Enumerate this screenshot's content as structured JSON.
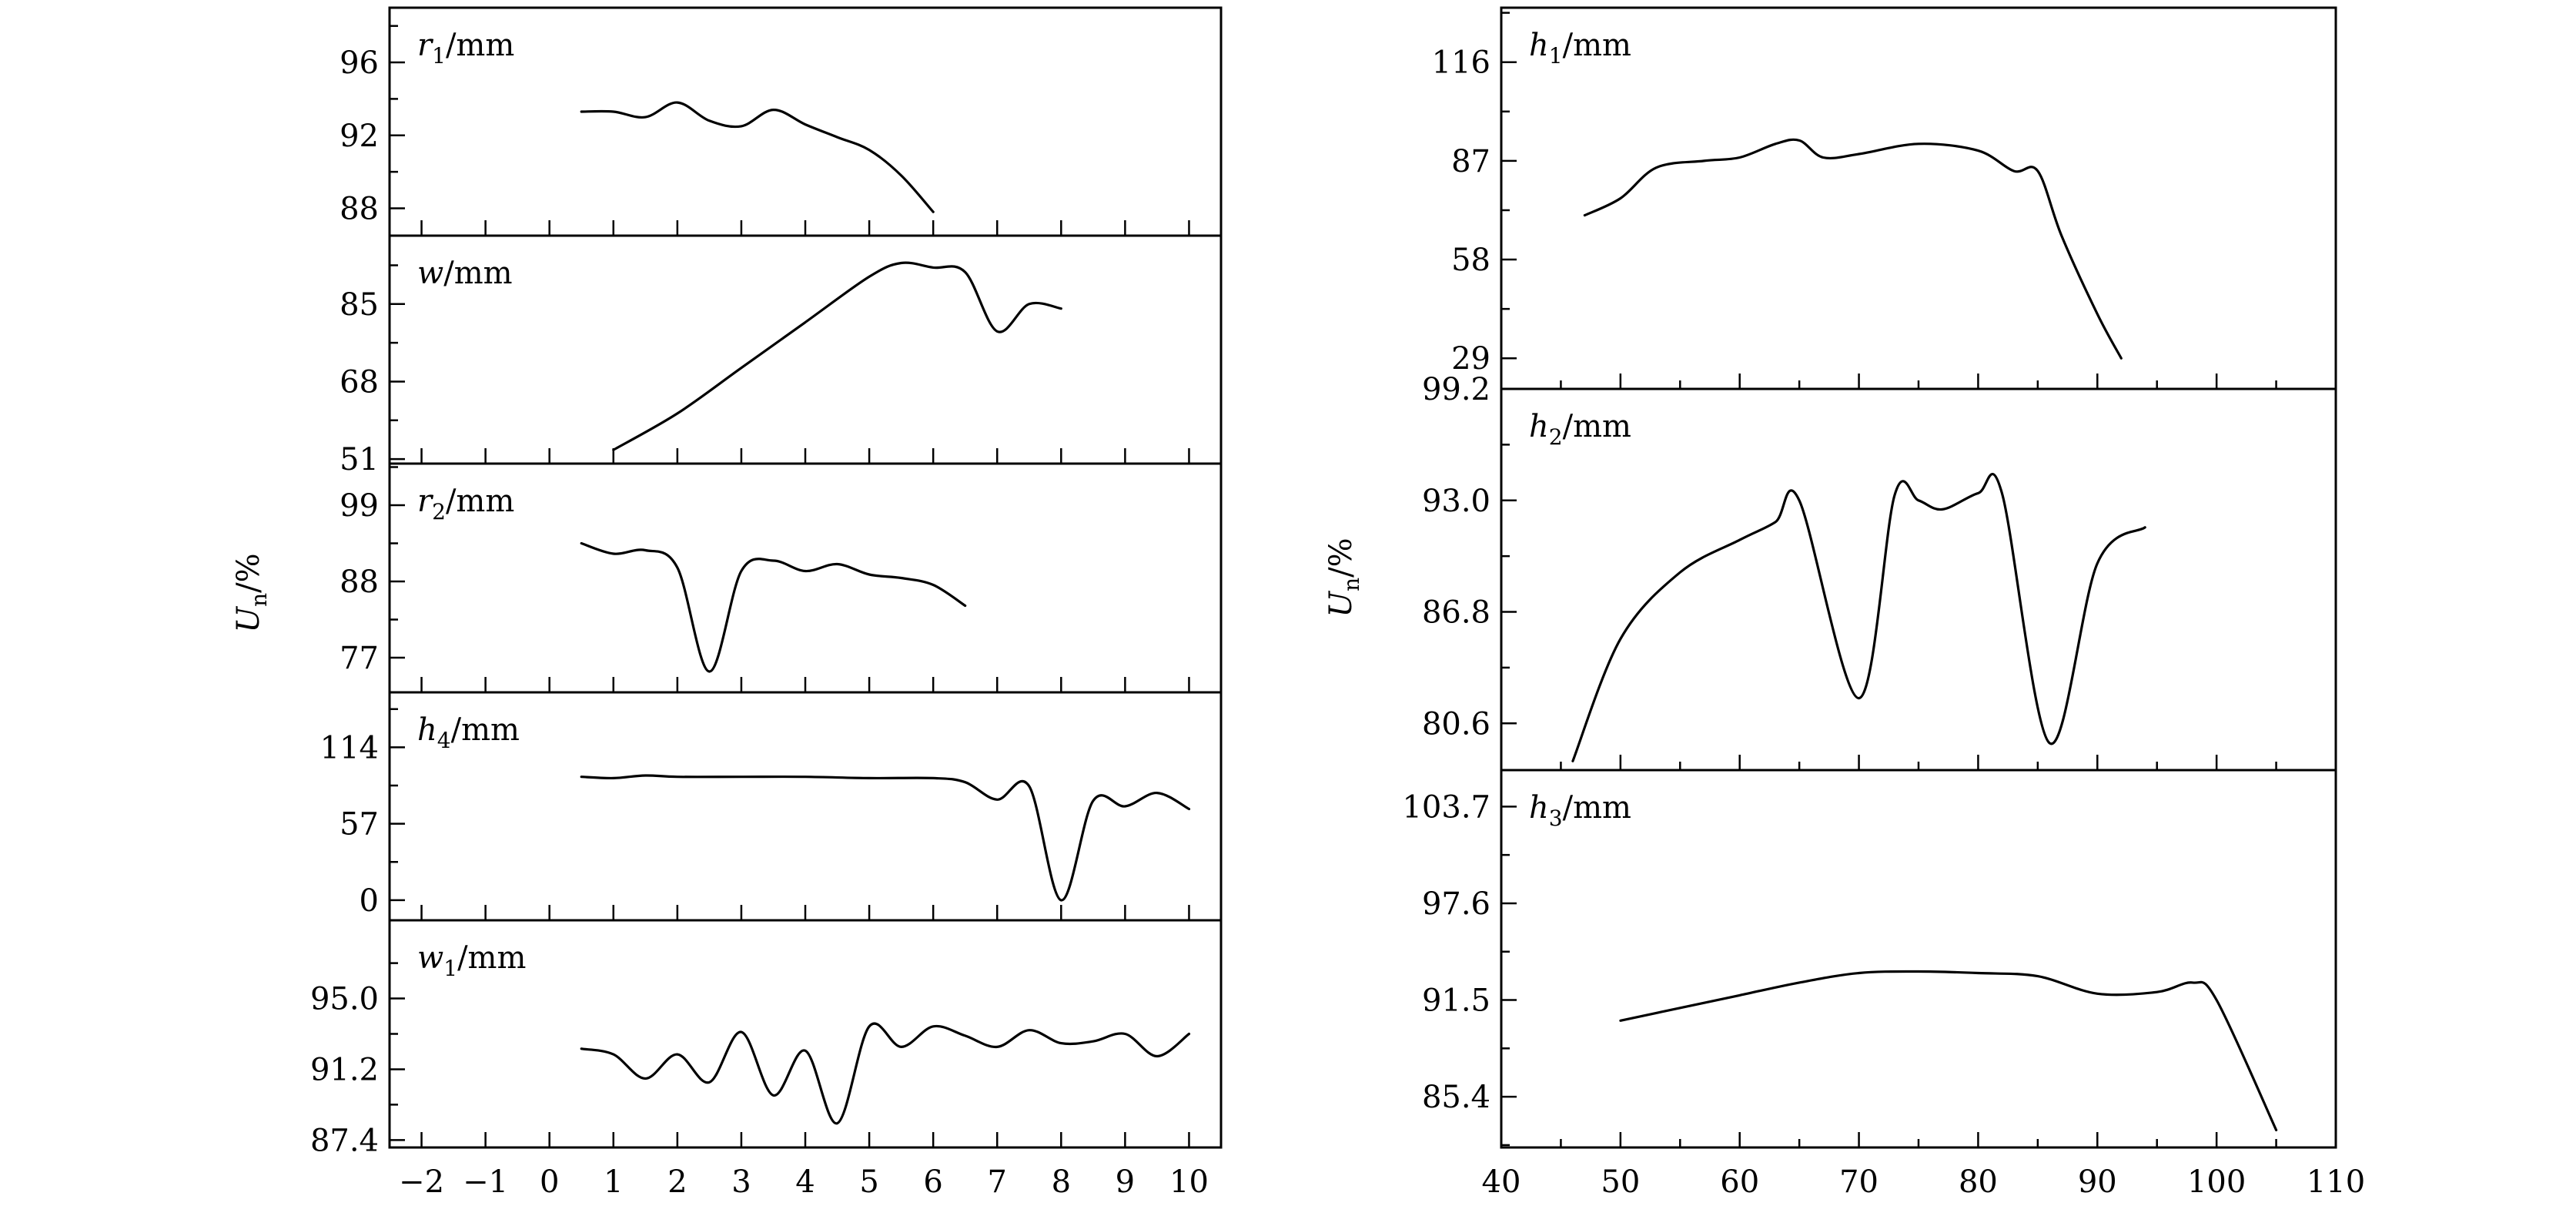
{
  "chart_data": {
    "type": "line",
    "y_axis_label": {
      "symbol": "U",
      "subscript": "n",
      "unit": "/%"
    },
    "left_column": {
      "x_ticks": [
        "−2",
        "−1",
        "0",
        "1",
        "2",
        "3",
        "4",
        "5",
        "6",
        "7",
        "8",
        "9",
        "10"
      ],
      "xlim": [
        -2.5,
        10.5
      ],
      "panels": [
        {
          "label": {
            "symbol": "r",
            "subscript": "1",
            "unit": "/mm"
          },
          "ylim": [
            86.5,
            99
          ],
          "yticks": [
            88,
            92,
            96
          ],
          "ytick_labels": [
            "88",
            "92",
            "96"
          ],
          "x": [
            0.5,
            1,
            1.5,
            2,
            2.5,
            3,
            3.5,
            4,
            4.5,
            5,
            5.5,
            6
          ],
          "y": [
            93.3,
            93.3,
            93.0,
            93.8,
            92.8,
            92.5,
            93.4,
            92.6,
            91.9,
            91.2,
            89.8,
            87.8
          ]
        },
        {
          "label": {
            "symbol": "w",
            "subscript": "",
            "unit": "/mm"
          },
          "ylim": [
            50,
            100
          ],
          "yticks": [
            51,
            68,
            85
          ],
          "ytick_labels": [
            "51",
            "68",
            "85"
          ],
          "x": [
            1,
            2,
            3,
            4,
            5,
            5.5,
            6,
            6.5,
            7,
            7.5,
            8
          ],
          "y": [
            53,
            61,
            71,
            81,
            91,
            94,
            93,
            92,
            79,
            85,
            84
          ]
        },
        {
          "label": {
            "symbol": "r",
            "subscript": "2",
            "unit": "/mm"
          },
          "ylim": [
            72,
            105
          ],
          "yticks": [
            77,
            88,
            99
          ],
          "ytick_labels": [
            "77",
            "88",
            "99"
          ],
          "x": [
            0.5,
            1,
            1.5,
            2,
            2.5,
            3,
            3.5,
            4,
            4.5,
            5,
            5.5,
            6,
            6.5
          ],
          "y": [
            93.5,
            92.0,
            92.5,
            90.0,
            75.0,
            89.5,
            91.0,
            89.5,
            90.5,
            89.0,
            88.5,
            87.5,
            84.5
          ]
        },
        {
          "label": {
            "symbol": "h",
            "subscript": "4",
            "unit": "/mm"
          },
          "ylim": [
            -15,
            155
          ],
          "yticks": [
            0,
            57,
            114
          ],
          "ytick_labels": [
            "0",
            "57",
            "114"
          ],
          "x": [
            0.5,
            1,
            1.5,
            2,
            3,
            4,
            5,
            6,
            6.5,
            7,
            7.5,
            8,
            8.5,
            9,
            9.5,
            10
          ],
          "y": [
            92,
            91,
            93,
            92,
            92,
            92,
            91,
            91,
            88,
            75,
            85,
            0,
            74,
            70,
            80,
            68
          ]
        },
        {
          "label": {
            "symbol": "w",
            "subscript": "1",
            "unit": "/mm"
          },
          "ylim": [
            87,
            99.2
          ],
          "yticks": [
            87.4,
            91.2,
            95.0
          ],
          "ytick_labels": [
            "87.4",
            "91.2",
            "95.0"
          ],
          "x": [
            0.5,
            1,
            1.5,
            2,
            2.5,
            3,
            3.5,
            4,
            4.5,
            5,
            5.5,
            6,
            6.5,
            7,
            7.5,
            8,
            8.5,
            9,
            9.5,
            10
          ],
          "y": [
            92.3,
            92.0,
            90.7,
            92.0,
            90.5,
            93.2,
            89.8,
            92.2,
            88.3,
            93.5,
            92.4,
            93.5,
            93.0,
            92.4,
            93.3,
            92.6,
            92.7,
            93.1,
            91.9,
            93.1
          ]
        }
      ]
    },
    "right_column": {
      "x_ticks": [
        "40",
        "50",
        "60",
        "70",
        "80",
        "90",
        "100",
        "110"
      ],
      "xlim": [
        40,
        110
      ],
      "panels": [
        {
          "label": {
            "symbol": "h",
            "subscript": "1",
            "unit": "/mm"
          },
          "ylim": [
            20,
            132
          ],
          "yticks": [
            29,
            58,
            87,
            116
          ],
          "ytick_labels": [
            "29",
            "58",
            "87",
            "116"
          ],
          "x": [
            47,
            50,
            53,
            57,
            60,
            63,
            65,
            67,
            70,
            75,
            80,
            83,
            85,
            87,
            90,
            92
          ],
          "y": [
            71,
            76,
            85,
            87,
            88,
            92,
            93,
            88,
            89,
            92,
            90,
            84,
            84,
            65,
            42,
            29
          ]
        },
        {
          "label": {
            "symbol": "h",
            "subscript": "2",
            "unit": "/mm"
          },
          "ylim": [
            78,
            99.2
          ],
          "yticks": [
            80.6,
            86.8,
            93.0,
            99.2
          ],
          "ytick_labels": [
            "80.6",
            "86.8",
            "93.0",
            "99.2"
          ],
          "x": [
            46,
            50,
            55,
            60,
            63,
            65,
            70,
            73,
            75,
            77,
            80,
            82,
            86,
            90,
            94
          ],
          "y": [
            78.5,
            85.3,
            89.0,
            90.8,
            91.8,
            93.0,
            82.0,
            93.3,
            93.0,
            92.5,
            93.4,
            93.4,
            79.5,
            89.5,
            91.5
          ]
        },
        {
          "label": {
            "symbol": "h",
            "subscript": "3",
            "unit": "/mm"
          },
          "ylim": [
            82.2,
            106
          ],
          "yticks": [
            85.4,
            91.5,
            97.6,
            103.7
          ],
          "ytick_labels": [
            "85.4",
            "91.5",
            "97.6",
            "103.7"
          ],
          "x": [
            50,
            55,
            60,
            65,
            70,
            75,
            80,
            85,
            90,
            95,
            98,
            100,
            105
          ],
          "y": [
            90.2,
            91.0,
            91.8,
            92.6,
            93.2,
            93.3,
            93.2,
            93.0,
            91.9,
            92.0,
            92.6,
            91.5,
            83.3
          ]
        }
      ]
    }
  }
}
